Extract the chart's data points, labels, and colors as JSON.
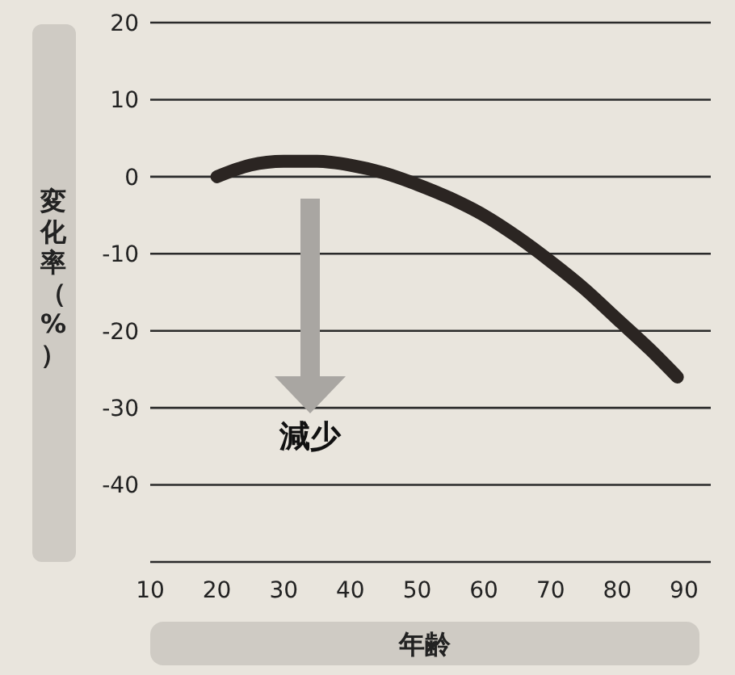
{
  "chart_data": {
    "type": "line",
    "ylabel": "変化率（%）",
    "xlabel": "年齢",
    "x": [
      20,
      25,
      30,
      35,
      40,
      45,
      50,
      55,
      60,
      65,
      70,
      75,
      80,
      85,
      89
    ],
    "series": [
      {
        "color": "#2b2522",
        "values": [
          0,
          1.5,
          2,
          2,
          1.5,
          0.5,
          -1,
          -2.8,
          -5,
          -7.8,
          -11,
          -14.5,
          -18.5,
          -22.5,
          -26
        ]
      }
    ],
    "xlim": [
      10,
      94
    ],
    "xticks": [
      10,
      20,
      30,
      40,
      50,
      60,
      70,
      80,
      90
    ],
    "ylim": [
      -50,
      20
    ],
    "yticks": [
      20,
      10,
      0,
      -10,
      -20,
      -30,
      -40,
      {
        "value": -50,
        "label": null
      }
    ],
    "grid": "y",
    "marker": "none",
    "line_style": "solid",
    "annotations": [
      "減少"
    ]
  }
}
